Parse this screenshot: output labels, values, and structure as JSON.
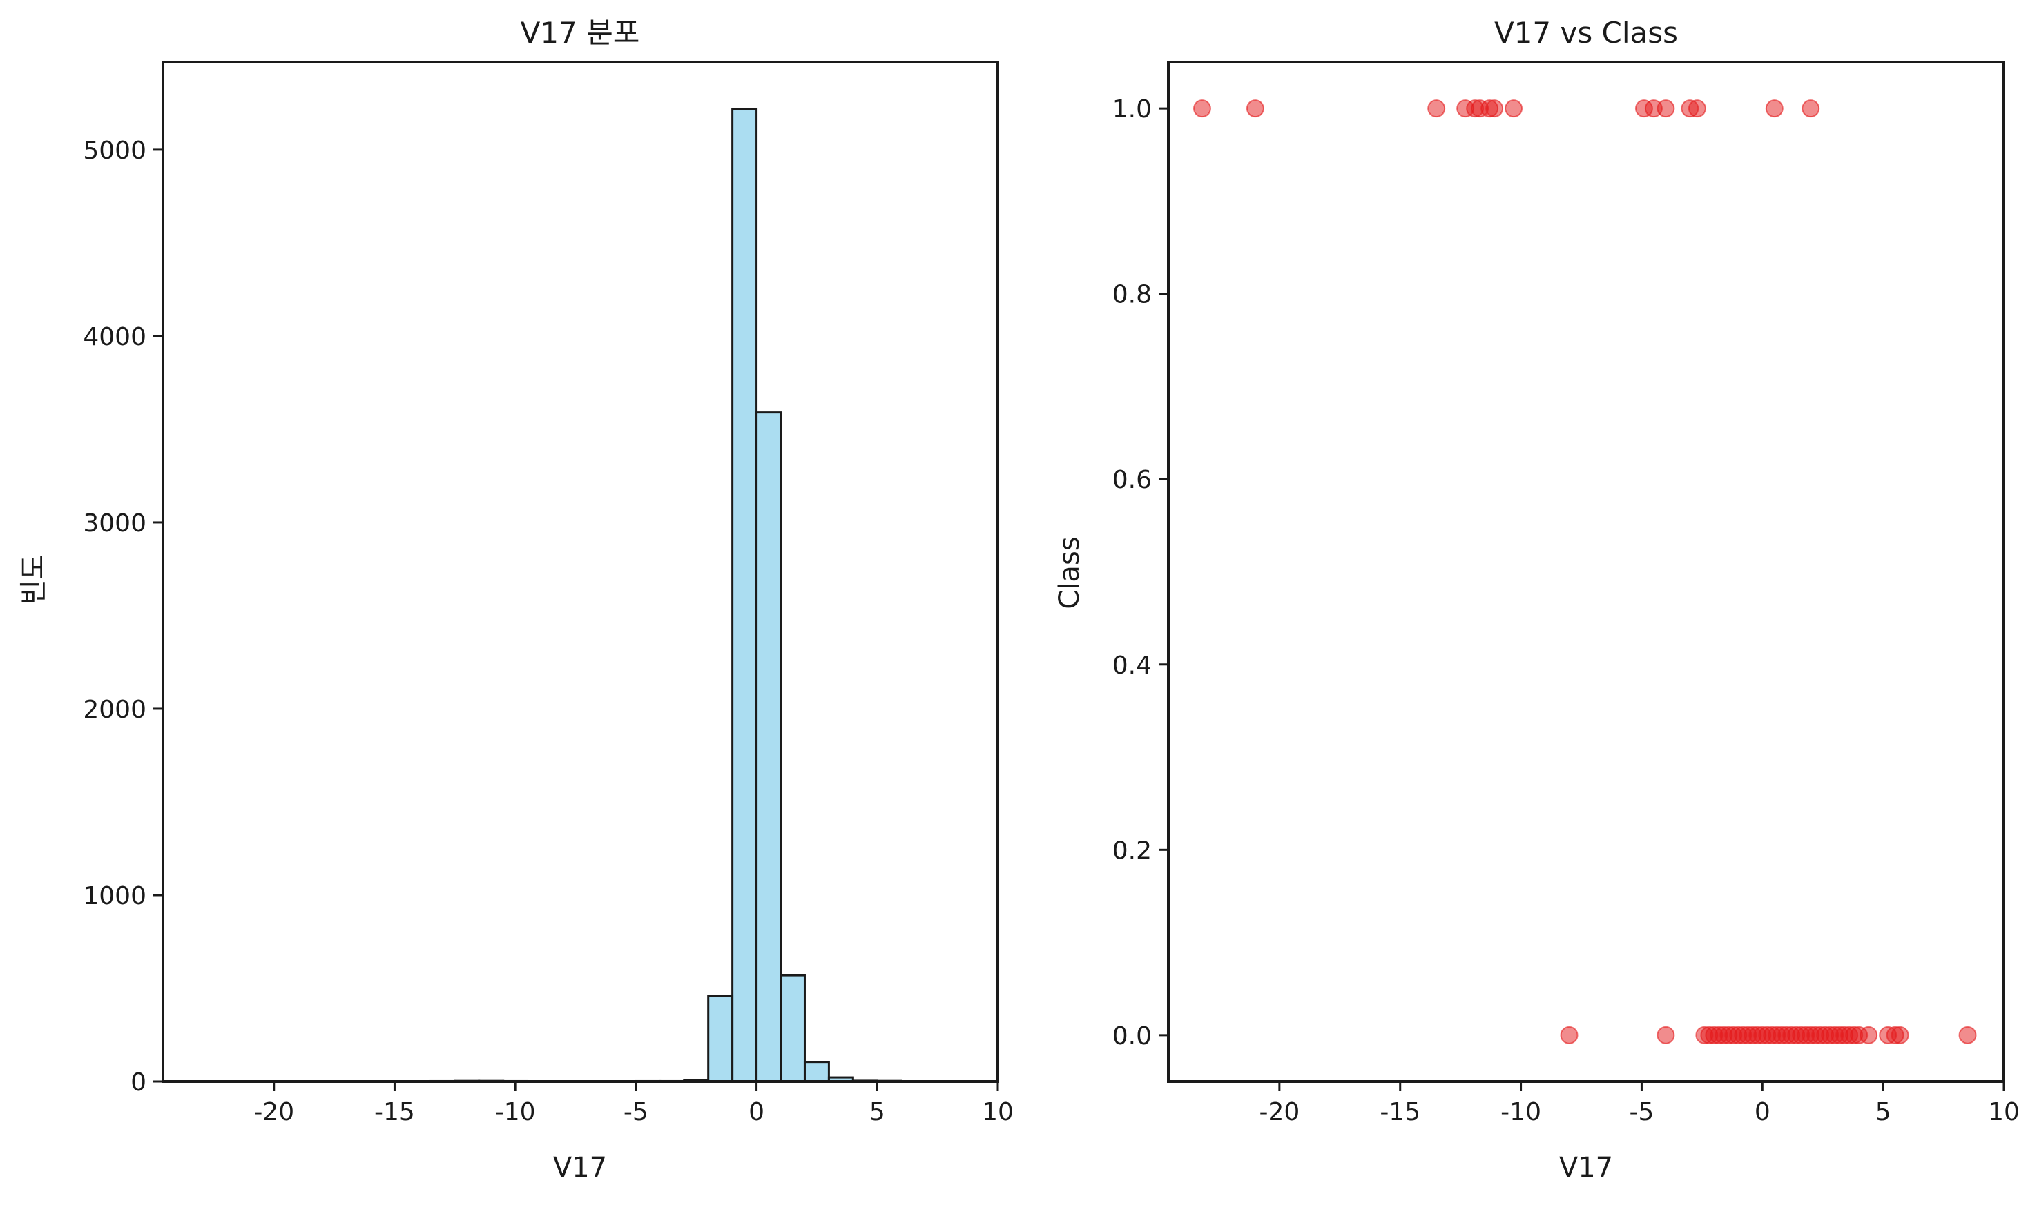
{
  "chart_data": [
    {
      "type": "bar",
      "subtype": "histogram",
      "title": "V17 분포",
      "xlabel": "V17",
      "ylabel": "빈도",
      "xlim": [
        -24.6,
        10.0
      ],
      "ylim": [
        0,
        5470
      ],
      "xticks": [
        -20,
        -15,
        -10,
        -5,
        0,
        5,
        10
      ],
      "xtick_labels": [
        "-20",
        "-15",
        "-10",
        "-5",
        "0",
        "5",
        "10"
      ],
      "yticks": [
        0,
        1000,
        2000,
        3000,
        4000,
        5000
      ],
      "ytick_labels": [
        "0",
        "1000",
        "2000",
        "3000",
        "4000",
        "5000"
      ],
      "bar_color": "#87CEEB",
      "edge_color": "#1a1a1a",
      "bins": [
        {
          "x0": -23.0,
          "x1": -22.0,
          "count": 1
        },
        {
          "x0": -21.2,
          "x1": -20.2,
          "count": 1
        },
        {
          "x0": -13.5,
          "x1": -12.5,
          "count": 2
        },
        {
          "x0": -12.5,
          "x1": -11.5,
          "count": 3
        },
        {
          "x0": -11.5,
          "x1": -10.5,
          "count": 3
        },
        {
          "x0": -10.5,
          "x1": -9.5,
          "count": 2
        },
        {
          "x0": -8.5,
          "x1": -7.5,
          "count": 1
        },
        {
          "x0": -5.0,
          "x1": -4.0,
          "count": 2
        },
        {
          "x0": -4.0,
          "x1": -3.0,
          "count": 2
        },
        {
          "x0": -3.0,
          "x1": -2.0,
          "count": 8
        },
        {
          "x0": -2.0,
          "x1": -1.0,
          "count": 460
        },
        {
          "x0": -1.0,
          "x1": 0.0,
          "count": 5220
        },
        {
          "x0": 0.0,
          "x1": 1.0,
          "count": 3590
        },
        {
          "x0": 1.0,
          "x1": 2.0,
          "count": 570
        },
        {
          "x0": 2.0,
          "x1": 3.0,
          "count": 105
        },
        {
          "x0": 3.0,
          "x1": 4.0,
          "count": 22
        },
        {
          "x0": 4.0,
          "x1": 5.0,
          "count": 4
        },
        {
          "x0": 5.0,
          "x1": 6.0,
          "count": 3
        },
        {
          "x0": 7.8,
          "x1": 8.8,
          "count": 1
        }
      ]
    },
    {
      "type": "scatter",
      "title": "V17 vs Class",
      "xlabel": "V17",
      "ylabel": "Class",
      "xlim": [
        -24.6,
        10.0
      ],
      "ylim": [
        -0.05,
        1.05
      ],
      "xticks": [
        -20,
        -15,
        -10,
        -5,
        0,
        5,
        10
      ],
      "xtick_labels": [
        "-20",
        "-15",
        "-10",
        "-5",
        "0",
        "5",
        "10"
      ],
      "yticks": [
        0.0,
        0.2,
        0.4,
        0.6,
        0.8,
        1.0
      ],
      "ytick_labels": [
        "0.0",
        "0.2",
        "0.4",
        "0.6",
        "0.8",
        "1.0"
      ],
      "marker_color": "#e41a1c",
      "points": [
        {
          "x": -23.2,
          "y": 1
        },
        {
          "x": -21.0,
          "y": 1
        },
        {
          "x": -13.5,
          "y": 1
        },
        {
          "x": -12.3,
          "y": 1
        },
        {
          "x": -11.9,
          "y": 1
        },
        {
          "x": -11.7,
          "y": 1
        },
        {
          "x": -11.3,
          "y": 1
        },
        {
          "x": -11.1,
          "y": 1
        },
        {
          "x": -10.3,
          "y": 1
        },
        {
          "x": -4.9,
          "y": 1
        },
        {
          "x": -4.5,
          "y": 1
        },
        {
          "x": -4.0,
          "y": 1
        },
        {
          "x": -3.0,
          "y": 1
        },
        {
          "x": -2.7,
          "y": 1
        },
        {
          "x": 0.5,
          "y": 1
        },
        {
          "x": 2.0,
          "y": 1
        },
        {
          "x": -8.0,
          "y": 0
        },
        {
          "x": -4.0,
          "y": 0
        },
        {
          "x": -2.4,
          "y": 0
        },
        {
          "x": -2.2,
          "y": 0
        },
        {
          "x": -2.0,
          "y": 0
        },
        {
          "x": -1.8,
          "y": 0
        },
        {
          "x": -1.6,
          "y": 0
        },
        {
          "x": -1.4,
          "y": 0
        },
        {
          "x": -1.2,
          "y": 0
        },
        {
          "x": -1.0,
          "y": 0
        },
        {
          "x": -0.8,
          "y": 0
        },
        {
          "x": -0.6,
          "y": 0
        },
        {
          "x": -0.4,
          "y": 0
        },
        {
          "x": -0.2,
          "y": 0
        },
        {
          "x": 0.0,
          "y": 0
        },
        {
          "x": 0.2,
          "y": 0
        },
        {
          "x": 0.4,
          "y": 0
        },
        {
          "x": 0.6,
          "y": 0
        },
        {
          "x": 0.8,
          "y": 0
        },
        {
          "x": 1.0,
          "y": 0
        },
        {
          "x": 1.2,
          "y": 0
        },
        {
          "x": 1.4,
          "y": 0
        },
        {
          "x": 1.6,
          "y": 0
        },
        {
          "x": 1.8,
          "y": 0
        },
        {
          "x": 2.0,
          "y": 0
        },
        {
          "x": 2.2,
          "y": 0
        },
        {
          "x": 2.4,
          "y": 0
        },
        {
          "x": 2.6,
          "y": 0
        },
        {
          "x": 2.8,
          "y": 0
        },
        {
          "x": 3.0,
          "y": 0
        },
        {
          "x": 3.2,
          "y": 0
        },
        {
          "x": 3.4,
          "y": 0
        },
        {
          "x": 3.6,
          "y": 0
        },
        {
          "x": 3.8,
          "y": 0
        },
        {
          "x": 4.0,
          "y": 0
        },
        {
          "x": 4.4,
          "y": 0
        },
        {
          "x": 5.2,
          "y": 0
        },
        {
          "x": 5.5,
          "y": 0
        },
        {
          "x": 5.7,
          "y": 0
        },
        {
          "x": 8.5,
          "y": 0
        }
      ]
    }
  ]
}
